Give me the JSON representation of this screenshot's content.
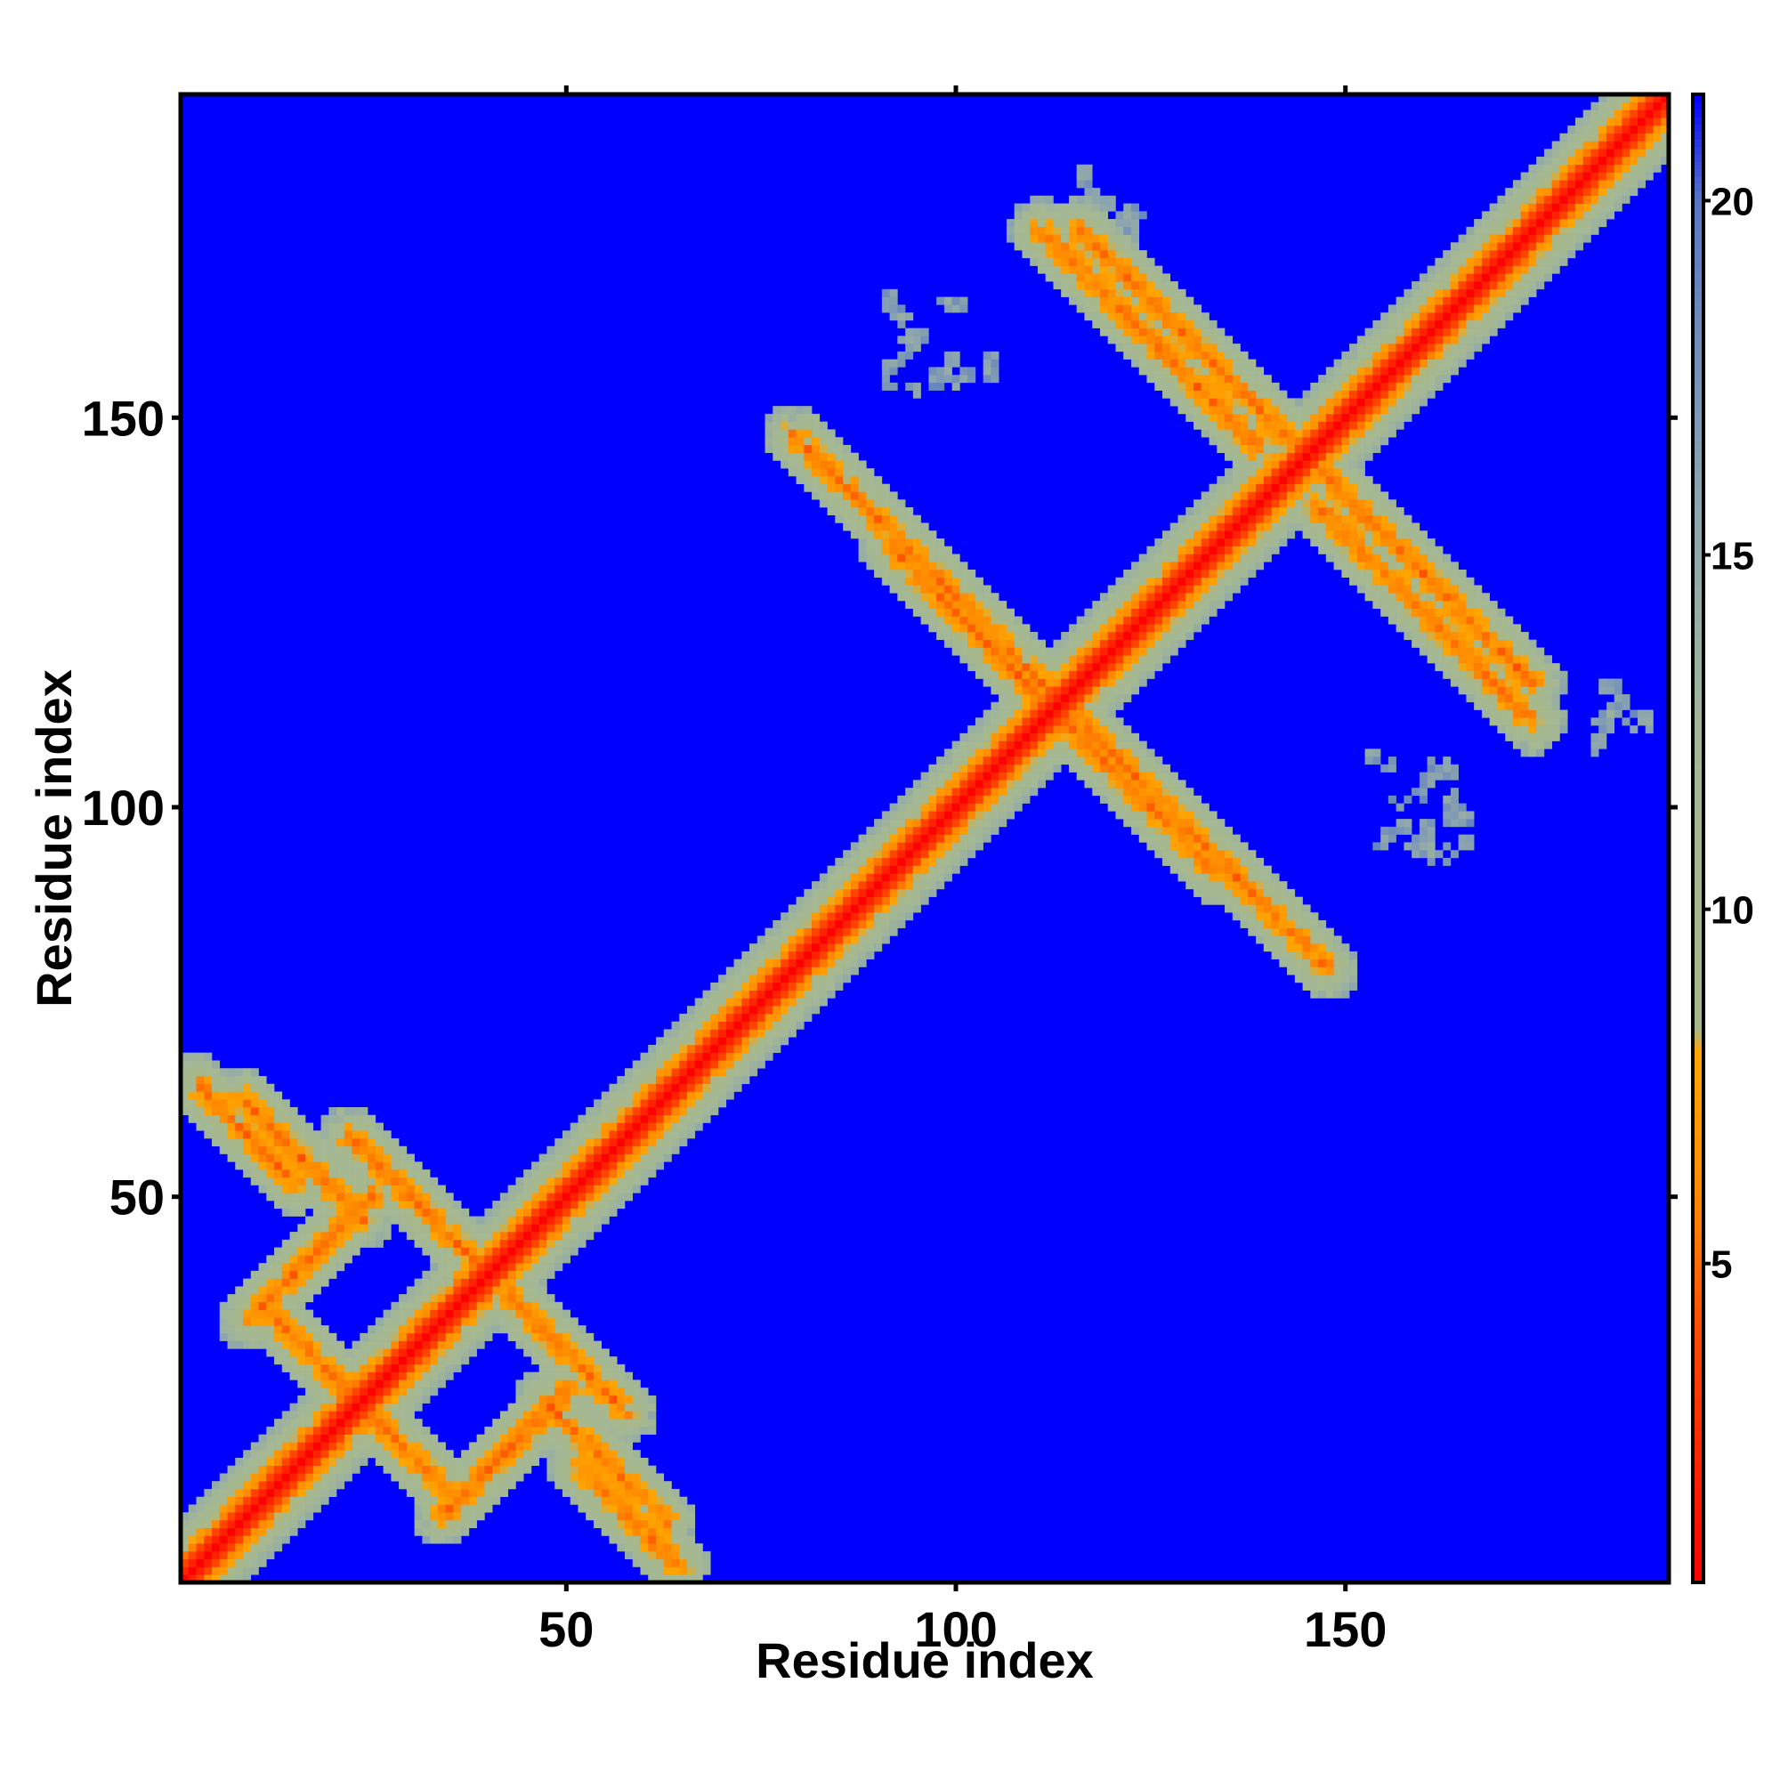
{
  "chart_data": {
    "type": "heatmap",
    "title": "",
    "xlabel": "Residue index",
    "ylabel": "Residue index",
    "xlim": [
      1,
      191
    ],
    "ylim": [
      1,
      191
    ],
    "x_ticks": [
      50,
      100,
      150
    ],
    "y_ticks": [
      50,
      100,
      150
    ],
    "value_range": [
      0.5,
      21.5
    ],
    "colorbar": {
      "ticks": [
        5,
        10,
        15,
        20
      ],
      "stops": [
        {
          "value": 0.5,
          "color": "#ff0000"
        },
        {
          "value": 4.0,
          "color": "#ff4a00"
        },
        {
          "value": 6.0,
          "color": "#ff8a00"
        },
        {
          "value": 8.0,
          "color": "#ffa500"
        },
        {
          "value": 8.3,
          "color": "#a8b88a"
        },
        {
          "value": 12.0,
          "color": "#a4b896"
        },
        {
          "value": 16.0,
          "color": "#8aa3b0"
        },
        {
          "value": 20.0,
          "color": "#5778c6"
        },
        {
          "value": 21.5,
          "color": "#0000ff"
        }
      ]
    },
    "diagonal_band": {
      "core_value": 0.5,
      "halfwidth_residues": 8
    },
    "contact_features": [
      {
        "kind": "antiparallel",
        "center": [
          30,
          50
        ],
        "length": 22
      },
      {
        "kind": "antiparallel",
        "center": [
          20,
          27
        ],
        "length": 22
      },
      {
        "kind": "antiparallel",
        "center": [
          55,
          16
        ],
        "length": 22
      },
      {
        "kind": "antiparallel",
        "center": [
          58,
          9
        ],
        "length": 18
      },
      {
        "kind": "parallel",
        "center": [
          45,
          20
        ],
        "length": 16
      },
      {
        "kind": "parallel",
        "center": [
          15,
          40
        ],
        "length": 16
      },
      {
        "kind": "antiparallel",
        "center": [
          97,
          130
        ],
        "length": 50
      },
      {
        "kind": "antiparallel",
        "center": [
          130,
          160
        ],
        "length": 40
      },
      {
        "kind": "antiparallel",
        "center": [
          120,
          105
        ],
        "length": 38
      },
      {
        "kind": "antiparallel",
        "center": [
          160,
          125
        ],
        "length": 40
      },
      {
        "kind": "patch",
        "center": [
          98,
          160
        ],
        "size": 14
      },
      {
        "kind": "patch",
        "center": [
          160,
          100
        ],
        "size": 14
      },
      {
        "kind": "patch",
        "center": [
          118,
          178
        ],
        "size": 10
      },
      {
        "kind": "patch",
        "center": [
          185,
          112
        ],
        "size": 8
      }
    ]
  }
}
